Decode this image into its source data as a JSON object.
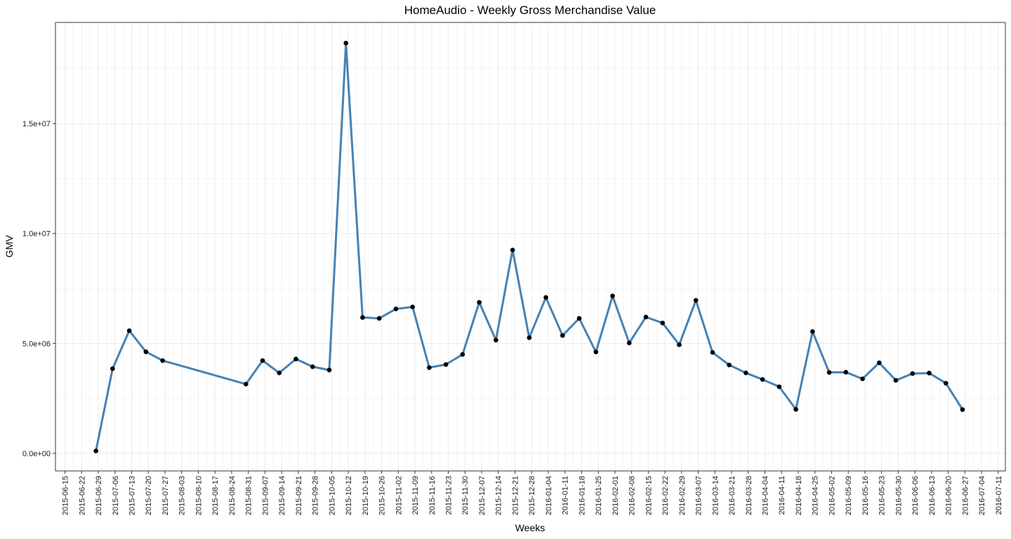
{
  "chart_data": {
    "type": "line",
    "title": "HomeAudio - Weekly Gross Merchandise Value",
    "xlabel": "Weeks",
    "ylabel": "GMV",
    "x_ticks": [
      "2015-06-15",
      "2015-06-22",
      "2015-06-29",
      "2015-07-06",
      "2015-07-13",
      "2015-07-20",
      "2015-07-27",
      "2015-08-03",
      "2015-08-10",
      "2015-08-17",
      "2015-08-24",
      "2015-08-31",
      "2015-09-07",
      "2015-09-14",
      "2015-09-21",
      "2015-09-28",
      "2015-10-05",
      "2015-10-12",
      "2015-10-19",
      "2015-10-26",
      "2015-11-02",
      "2015-11-09",
      "2015-11-16",
      "2015-11-23",
      "2015-11-30",
      "2015-12-07",
      "2015-12-14",
      "2015-12-21",
      "2015-12-28",
      "2016-01-04",
      "2016-01-11",
      "2016-01-18",
      "2016-01-25",
      "2016-02-01",
      "2016-02-08",
      "2016-02-15",
      "2016-02-22",
      "2016-02-29",
      "2016-03-07",
      "2016-03-14",
      "2016-03-21",
      "2016-03-28",
      "2016-04-04",
      "2016-04-11",
      "2016-04-18",
      "2016-04-25",
      "2016-05-02",
      "2016-05-09",
      "2016-05-16",
      "2016-05-23",
      "2016-05-30",
      "2016-06-06",
      "2016-06-13",
      "2016-06-20",
      "2016-06-27",
      "2016-07-04",
      "2016-07-11"
    ],
    "y_ticks": [
      {
        "value": 0,
        "label": "0.0e+00"
      },
      {
        "value": 5000000,
        "label": "5.0e+06"
      },
      {
        "value": 10000000,
        "label": "1.0e+07"
      },
      {
        "value": 15000000,
        "label": "1.5e+07"
      }
    ],
    "ylim": [
      -800000,
      19600000
    ],
    "xlim": [
      "2015-06-11",
      "2016-07-14"
    ],
    "grid": true,
    "line_color": "#4682b4",
    "point_color": "#000000",
    "series": [
      {
        "points": [
          {
            "x": "2015-06-28",
            "y": 110000
          },
          {
            "x": "2015-07-05",
            "y": 3850000
          },
          {
            "x": "2015-07-12",
            "y": 5580000
          },
          {
            "x": "2015-07-19",
            "y": 4620000
          },
          {
            "x": "2015-07-26",
            "y": 4220000
          },
          {
            "x": "2015-08-30",
            "y": 3150000
          },
          {
            "x": "2015-09-06",
            "y": 4220000
          },
          {
            "x": "2015-09-13",
            "y": 3660000
          },
          {
            "x": "2015-09-20",
            "y": 4290000
          },
          {
            "x": "2015-09-27",
            "y": 3940000
          },
          {
            "x": "2015-10-04",
            "y": 3790000
          },
          {
            "x": "2015-10-11",
            "y": 18660000
          },
          {
            "x": "2015-10-18",
            "y": 6180000
          },
          {
            "x": "2015-10-25",
            "y": 6140000
          },
          {
            "x": "2015-11-01",
            "y": 6570000
          },
          {
            "x": "2015-11-08",
            "y": 6660000
          },
          {
            "x": "2015-11-15",
            "y": 3900000
          },
          {
            "x": "2015-11-22",
            "y": 4040000
          },
          {
            "x": "2015-11-29",
            "y": 4500000
          },
          {
            "x": "2015-12-06",
            "y": 6870000
          },
          {
            "x": "2015-12-13",
            "y": 5150000
          },
          {
            "x": "2015-12-20",
            "y": 9250000
          },
          {
            "x": "2015-12-27",
            "y": 5260000
          },
          {
            "x": "2016-01-03",
            "y": 7090000
          },
          {
            "x": "2016-01-10",
            "y": 5360000
          },
          {
            "x": "2016-01-17",
            "y": 6140000
          },
          {
            "x": "2016-01-24",
            "y": 4610000
          },
          {
            "x": "2016-01-31",
            "y": 7160000
          },
          {
            "x": "2016-02-07",
            "y": 5020000
          },
          {
            "x": "2016-02-14",
            "y": 6200000
          },
          {
            "x": "2016-02-21",
            "y": 5930000
          },
          {
            "x": "2016-02-28",
            "y": 4940000
          },
          {
            "x": "2016-03-06",
            "y": 6960000
          },
          {
            "x": "2016-03-13",
            "y": 4590000
          },
          {
            "x": "2016-03-20",
            "y": 4020000
          },
          {
            "x": "2016-03-27",
            "y": 3660000
          },
          {
            "x": "2016-04-03",
            "y": 3360000
          },
          {
            "x": "2016-04-10",
            "y": 3030000
          },
          {
            "x": "2016-04-17",
            "y": 2000000
          },
          {
            "x": "2016-04-24",
            "y": 5540000
          },
          {
            "x": "2016-05-01",
            "y": 3680000
          },
          {
            "x": "2016-05-08",
            "y": 3690000
          },
          {
            "x": "2016-05-15",
            "y": 3390000
          },
          {
            "x": "2016-05-22",
            "y": 4120000
          },
          {
            "x": "2016-05-29",
            "y": 3320000
          },
          {
            "x": "2016-06-05",
            "y": 3630000
          },
          {
            "x": "2016-06-12",
            "y": 3650000
          },
          {
            "x": "2016-06-19",
            "y": 3190000
          },
          {
            "x": "2016-06-26",
            "y": 1990000
          }
        ]
      }
    ]
  }
}
